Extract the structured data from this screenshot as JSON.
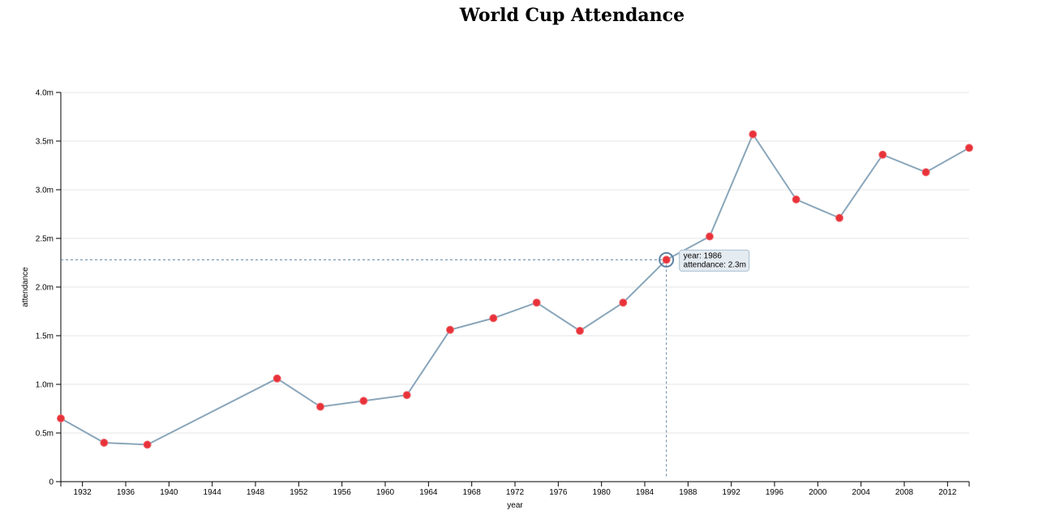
{
  "chart_data": {
    "type": "line",
    "title": "World Cup Attendance",
    "xlabel": "year",
    "ylabel": "attendance",
    "xlim": [
      1930,
      2014
    ],
    "ylim": [
      0,
      4.0
    ],
    "x_ticks": [
      1932,
      1936,
      1940,
      1944,
      1948,
      1952,
      1956,
      1960,
      1964,
      1968,
      1972,
      1976,
      1980,
      1984,
      1988,
      1992,
      1996,
      2000,
      2004,
      2008,
      2012
    ],
    "y_ticks": [
      {
        "value": 0,
        "label": "0"
      },
      {
        "value": 0.5,
        "label": "0.5m"
      },
      {
        "value": 1.0,
        "label": "1.0m"
      },
      {
        "value": 1.5,
        "label": "1.5m"
      },
      {
        "value": 2.0,
        "label": "2.0m"
      },
      {
        "value": 2.5,
        "label": "2.5m"
      },
      {
        "value": 3.0,
        "label": "3.0m"
      },
      {
        "value": 3.5,
        "label": "3.5m"
      },
      {
        "value": 4.0,
        "label": "4.0m"
      }
    ],
    "grid": "horizontal",
    "line_color": "#8aa6ba",
    "point_color": "#e8323a",
    "points": [
      {
        "year": 1930,
        "attendance": 0.65
      },
      {
        "year": 1934,
        "attendance": 0.4
      },
      {
        "year": 1938,
        "attendance": 0.38
      },
      {
        "year": 1950,
        "attendance": 1.06
      },
      {
        "year": 1954,
        "attendance": 0.77
      },
      {
        "year": 1958,
        "attendance": 0.83
      },
      {
        "year": 1962,
        "attendance": 0.89
      },
      {
        "year": 1966,
        "attendance": 1.56
      },
      {
        "year": 1970,
        "attendance": 1.68
      },
      {
        "year": 1974,
        "attendance": 1.84
      },
      {
        "year": 1978,
        "attendance": 1.55
      },
      {
        "year": 1982,
        "attendance": 1.84
      },
      {
        "year": 1986,
        "attendance": 2.28
      },
      {
        "year": 1990,
        "attendance": 2.52
      },
      {
        "year": 1994,
        "attendance": 3.57
      },
      {
        "year": 1998,
        "attendance": 2.9
      },
      {
        "year": 2002,
        "attendance": 2.71
      },
      {
        "year": 2006,
        "attendance": 3.36
      },
      {
        "year": 2010,
        "attendance": 3.18
      },
      {
        "year": 2014,
        "attendance": 3.43
      }
    ],
    "highlight": {
      "year": 1986,
      "attendance": 2.28,
      "tooltip_year": "year: 1986",
      "tooltip_attendance": "attendance: 2.3m"
    }
  }
}
